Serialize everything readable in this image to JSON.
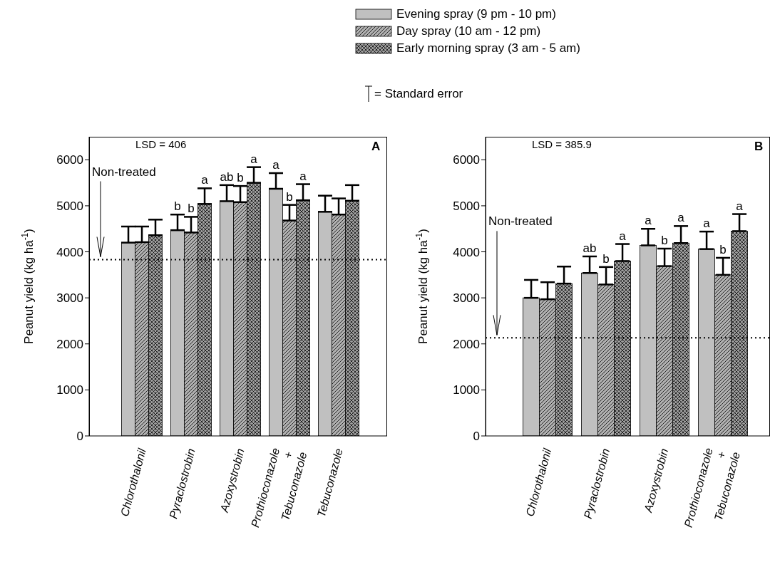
{
  "chart_data": [
    {
      "type": "bar",
      "categories": [
        "Chlorothalonil",
        "Pyraclostrobin",
        "Azoxystrobin",
        "Prothioconazole\n+\nTebuconazole",
        "Tebuconazole"
      ],
      "ylabel": "Peanut yield (kg ha$^{-1}$)",
      "ylim": [
        0,
        6500
      ],
      "yticks": [
        0,
        1000,
        2000,
        3000,
        4000,
        5000,
        6000
      ],
      "legend": "top",
      "annotations": [
        "LSD = 406",
        "A",
        "= Standard error"
      ],
      "ref_lines": [
        {
          "axis": "y",
          "value": 3830,
          "label": "Non-treated",
          "line_style": "dotted",
          "color": "#000000"
        }
      ],
      "series": [
        {
          "name": "Evening spray (9 pm - 10 pm)",
          "color": "#c0c0c0",
          "values": [
            4200,
            4470,
            5100,
            5370,
            4870
          ],
          "errors": [
            [
              4200,
              4550
            ],
            [
              4470,
              4810
            ],
            [
              5100,
              5450
            ],
            [
              5370,
              5710
            ],
            [
              4870,
              5220
            ]
          ],
          "value_labels": [
            null,
            "b",
            "ab",
            "a",
            null
          ]
        },
        {
          "name": "Day spray (10 am - 12 pm)",
          "color": "#b0b0b0",
          "values": [
            4210,
            4420,
            5080,
            4680,
            4810
          ],
          "errors": [
            [
              4210,
              4550
            ],
            [
              4420,
              4760
            ],
            [
              5080,
              5430
            ],
            [
              4680,
              5020
            ],
            [
              4810,
              5160
            ]
          ],
          "value_labels": [
            null,
            "b",
            "b",
            "b",
            null
          ]
        },
        {
          "name": "Early morning spray (3 am - 5 am)",
          "color": "#a0a0a0",
          "values": [
            4360,
            5040,
            5500,
            5120,
            5110
          ],
          "errors": [
            [
              4360,
              4700
            ],
            [
              5040,
              5380
            ],
            [
              5500,
              5840
            ],
            [
              5120,
              5470
            ],
            [
              5110,
              5450
            ]
          ],
          "value_labels": [
            null,
            "a",
            "a",
            "a",
            null
          ]
        }
      ]
    },
    {
      "type": "bar",
      "categories": [
        "Chlorothalonil",
        "Pyraclostrobin",
        "Azoxystrobin",
        "Prothioconazole\n+\nTebuconazole"
      ],
      "ylabel": "Peanut yield (kg ha$^{-1}$)",
      "ylim": [
        0,
        6500
      ],
      "yticks": [
        0,
        1000,
        2000,
        3000,
        4000,
        5000,
        6000
      ],
      "annotations": [
        "LSD = 385.9",
        "B"
      ],
      "ref_lines": [
        {
          "axis": "y",
          "value": 2130,
          "label": "Non-treated",
          "line_style": "dotted",
          "color": "#000000"
        }
      ],
      "series": [
        {
          "color": "#c0c0c0",
          "values": [
            3000,
            3540,
            4140,
            4060
          ],
          "errors": [
            [
              3000,
              3390
            ],
            [
              3540,
              3900
            ],
            [
              4140,
              4500
            ],
            [
              4060,
              4440
            ]
          ],
          "value_labels": [
            null,
            "ab",
            "a",
            "a"
          ]
        },
        {
          "color": "#b0b0b0",
          "values": [
            2970,
            3290,
            3690,
            3500
          ],
          "errors": [
            [
              2970,
              3340
            ],
            [
              3290,
              3670
            ],
            [
              3690,
              4070
            ],
            [
              3500,
              3870
            ]
          ],
          "value_labels": [
            null,
            "b",
            "b",
            "b"
          ]
        },
        {
          "color": "#a0a0a0",
          "values": [
            3310,
            3800,
            4190,
            4450
          ],
          "errors": [
            [
              3310,
              3680
            ],
            [
              3800,
              4170
            ],
            [
              4190,
              4560
            ],
            [
              4450,
              4820
            ]
          ],
          "value_labels": [
            null,
            "a",
            "a",
            "a"
          ]
        }
      ]
    }
  ]
}
